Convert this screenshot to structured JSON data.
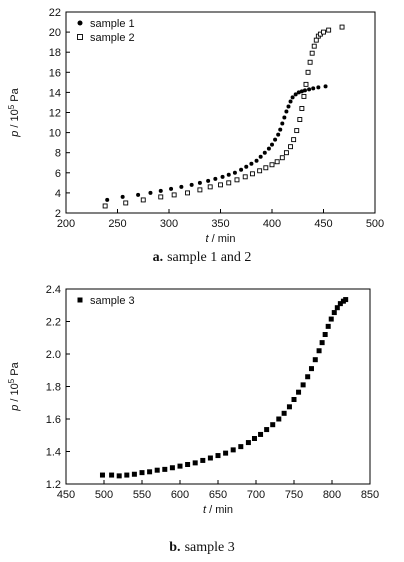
{
  "captions": {
    "a": {
      "letter": "a.",
      "text": "sample 1  and 2"
    },
    "b": {
      "letter": "b.",
      "text": "sample 3"
    }
  },
  "chart_data": [
    {
      "type": "scatter",
      "xlabel_var": "t",
      "xlabel_unit": " / min",
      "ylabel_var": "p",
      "ylabel_unit_prefix": " / 10",
      "ylabel_unit_exp": "5",
      "ylabel_unit_suffix": " Pa",
      "xlim": [
        200,
        500
      ],
      "ylim": [
        2,
        22
      ],
      "xticks": [
        200,
        250,
        300,
        350,
        400,
        450,
        500
      ],
      "yticks": [
        2,
        4,
        6,
        8,
        10,
        12,
        14,
        16,
        18,
        20,
        22
      ],
      "legend_position": "top-left",
      "grid": false,
      "series": [
        {
          "name": "sample 1",
          "marker": "filled-circle",
          "color": "#000000",
          "x": [
            240,
            255,
            270,
            282,
            292,
            302,
            312,
            322,
            330,
            338,
            345,
            352,
            358,
            364,
            370,
            375,
            380,
            385,
            389,
            393,
            397,
            400,
            403,
            406,
            408,
            410,
            412,
            414,
            416,
            418,
            420,
            423,
            426,
            429,
            432,
            436,
            440,
            445,
            452
          ],
          "y": [
            3.3,
            3.6,
            3.8,
            4.0,
            4.2,
            4.4,
            4.6,
            4.8,
            5.0,
            5.2,
            5.4,
            5.6,
            5.8,
            6.0,
            6.3,
            6.6,
            6.9,
            7.2,
            7.6,
            8.0,
            8.4,
            8.8,
            9.3,
            9.8,
            10.3,
            10.9,
            11.5,
            12.1,
            12.6,
            13.1,
            13.5,
            13.8,
            14.0,
            14.1,
            14.2,
            14.3,
            14.4,
            14.5,
            14.6
          ]
        },
        {
          "name": "sample 2",
          "marker": "open-square",
          "color": "#000000",
          "x": [
            238,
            258,
            275,
            292,
            305,
            318,
            330,
            340,
            350,
            358,
            366,
            374,
            381,
            388,
            394,
            400,
            405,
            410,
            414,
            418,
            421,
            424,
            427,
            429,
            431,
            433,
            435,
            437,
            439,
            441,
            443,
            445,
            447,
            450,
            455,
            468
          ],
          "y": [
            2.7,
            3.0,
            3.3,
            3.6,
            3.8,
            4.0,
            4.3,
            4.6,
            4.8,
            5.0,
            5.3,
            5.6,
            5.9,
            6.2,
            6.5,
            6.8,
            7.1,
            7.5,
            8.0,
            8.6,
            9.3,
            10.2,
            11.3,
            12.4,
            13.6,
            14.8,
            16.0,
            17.0,
            17.9,
            18.6,
            19.2,
            19.6,
            19.8,
            20.0,
            20.2,
            20.5
          ]
        }
      ]
    },
    {
      "type": "scatter",
      "xlabel_var": "t",
      "xlabel_unit": " / min",
      "ylabel_var": "p",
      "ylabel_unit_prefix": " / 10",
      "ylabel_unit_exp": "5",
      "ylabel_unit_suffix": " Pa",
      "xlim": [
        450,
        850
      ],
      "ylim": [
        1.2,
        2.4
      ],
      "xticks": [
        450,
        500,
        550,
        600,
        650,
        700,
        750,
        800,
        850
      ],
      "yticks": [
        1.2,
        1.4,
        1.6,
        1.8,
        2.0,
        2.2,
        2.4
      ],
      "ytick_labels": [
        "1.2",
        "1.4",
        "1.6",
        "1.8",
        "2.0",
        "2.2",
        "2.4"
      ],
      "legend_position": "top-left",
      "grid": false,
      "series": [
        {
          "name": "sample 3",
          "marker": "filled-square",
          "color": "#000000",
          "x": [
            498,
            510,
            520,
            530,
            540,
            550,
            560,
            570,
            580,
            590,
            600,
            610,
            620,
            630,
            640,
            650,
            660,
            670,
            680,
            690,
            698,
            706,
            714,
            722,
            730,
            737,
            744,
            750,
            756,
            762,
            768,
            773,
            778,
            783,
            787,
            791,
            795,
            799,
            803,
            807,
            811,
            815,
            818
          ],
          "y": [
            1.255,
            1.255,
            1.25,
            1.255,
            1.26,
            1.27,
            1.275,
            1.285,
            1.29,
            1.3,
            1.31,
            1.32,
            1.33,
            1.345,
            1.36,
            1.375,
            1.39,
            1.41,
            1.43,
            1.455,
            1.48,
            1.505,
            1.535,
            1.565,
            1.6,
            1.635,
            1.675,
            1.72,
            1.765,
            1.81,
            1.86,
            1.91,
            1.965,
            2.02,
            2.07,
            2.12,
            2.17,
            2.215,
            2.255,
            2.285,
            2.31,
            2.325,
            2.335
          ]
        }
      ]
    }
  ]
}
